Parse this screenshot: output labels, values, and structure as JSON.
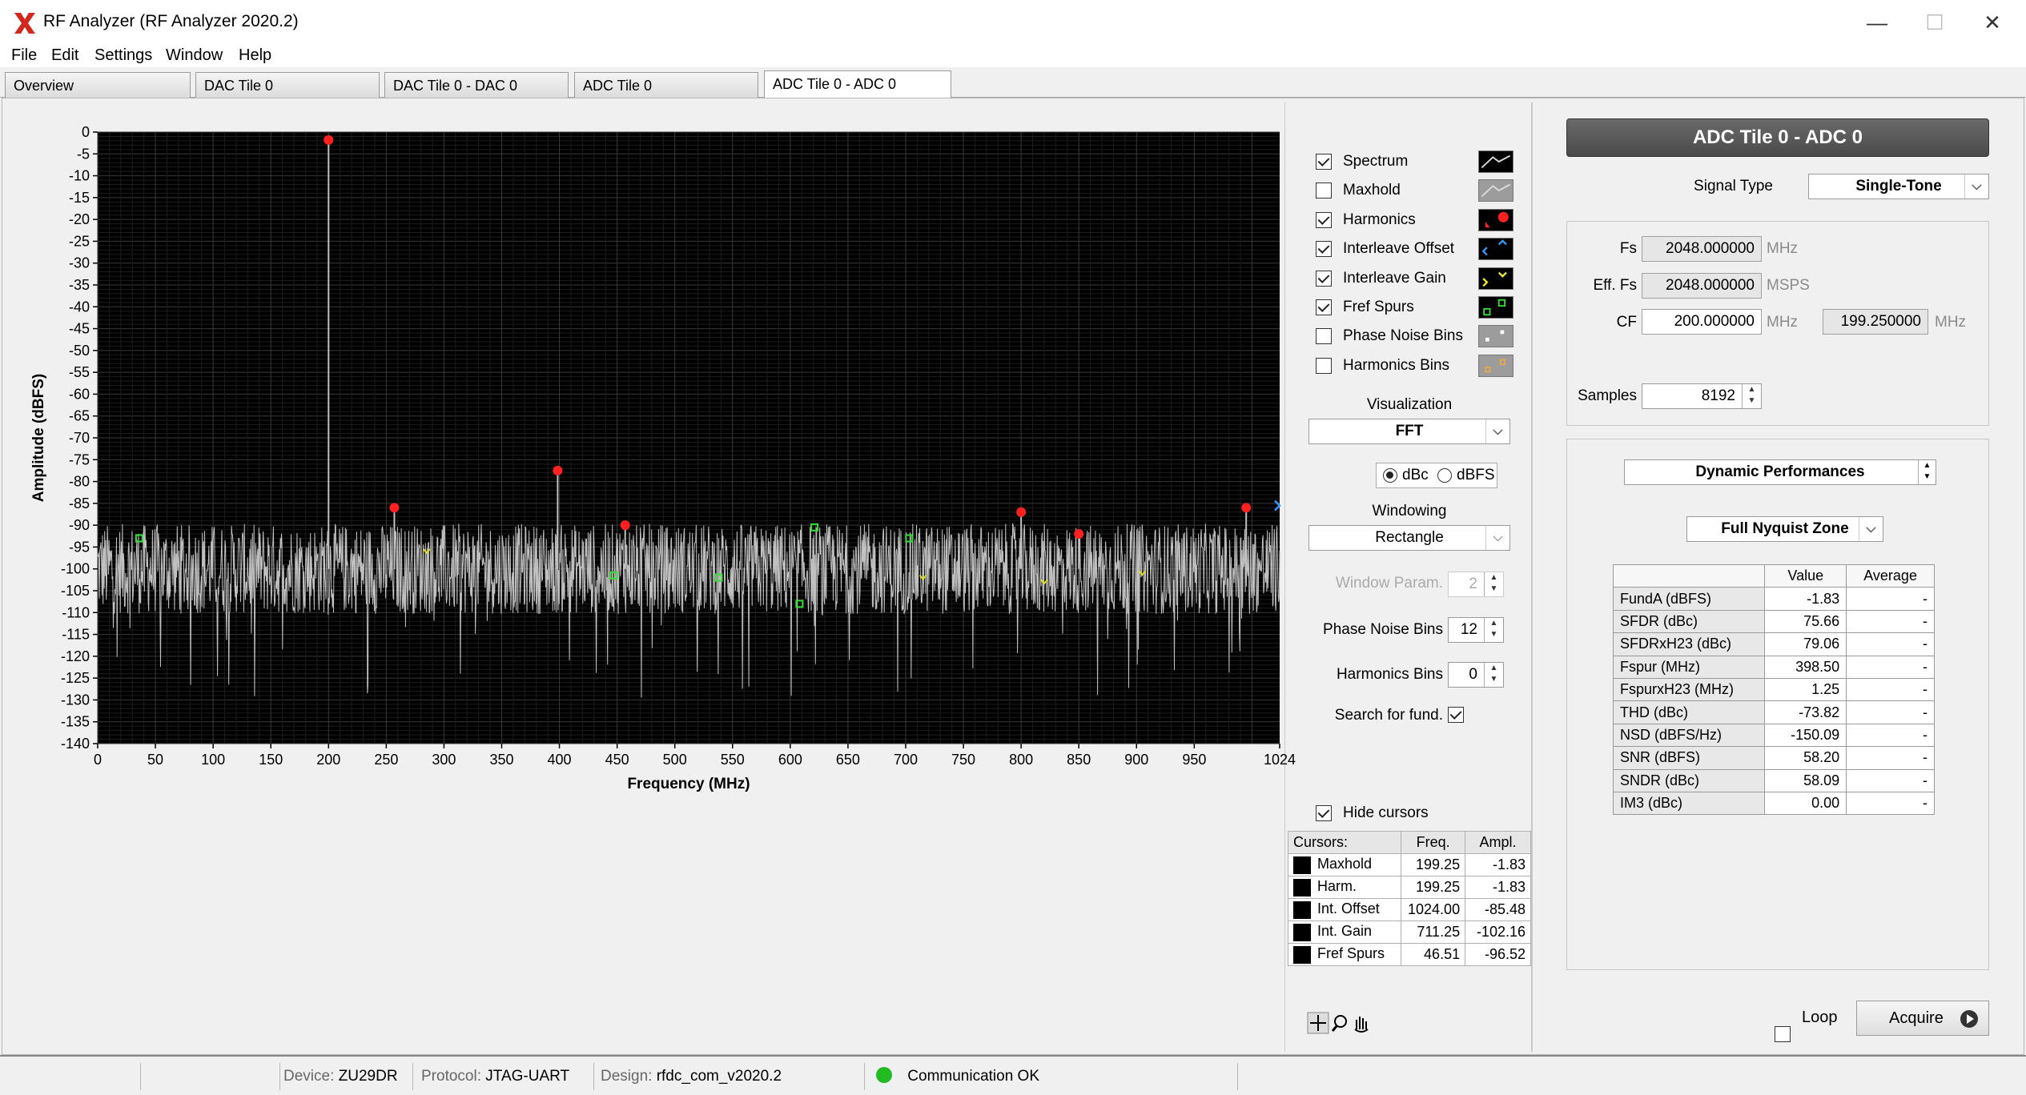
{
  "window": {
    "title": "RF Analyzer (RF Analyzer 2020.2)",
    "minimize_glyph": "—",
    "maximize_glyph": "☐",
    "close_glyph": "✕"
  },
  "menu": [
    "File",
    "Edit",
    "Settings",
    "Window",
    "Help"
  ],
  "tabs": [
    {
      "label": "Overview"
    },
    {
      "label": "DAC Tile 0"
    },
    {
      "label": "DAC Tile 0 - DAC 0"
    },
    {
      "label": "ADC Tile 0"
    },
    {
      "label": "ADC Tile 0 - ADC 0"
    }
  ],
  "active_tab": "ADC Tile 0 - ADC 0",
  "chart_data": {
    "type": "line",
    "xlabel": "Frequency (MHz)",
    "ylabel": "Amplitude (dBFS)",
    "xlim": [
      0,
      1024
    ],
    "ylim": [
      -140,
      0
    ],
    "x_ticks": [
      0,
      50,
      100,
      150,
      200,
      250,
      300,
      350,
      400,
      450,
      500,
      550,
      600,
      650,
      700,
      750,
      800,
      850,
      900,
      950,
      1024
    ],
    "y_ticks": [
      0,
      -5,
      -10,
      -15,
      -20,
      -25,
      -30,
      -35,
      -40,
      -45,
      -50,
      -55,
      -60,
      -65,
      -70,
      -75,
      -80,
      -85,
      -90,
      -95,
      -100,
      -105,
      -110,
      -115,
      -120,
      -125,
      -130,
      -135,
      -140
    ],
    "grid": true,
    "background": "#000000",
    "spectrum_color": "#c0c0c0",
    "noise_floor_db": -100,
    "noise_band_db": [
      -111,
      -88
    ],
    "series": [
      {
        "name": "Harmonics",
        "color": "#ff2020",
        "points": [
          {
            "x": 200,
            "y": -1.8
          },
          {
            "x": 257,
            "y": -86
          },
          {
            "x": 398.5,
            "y": -77.5
          },
          {
            "x": 457,
            "y": -90
          },
          {
            "x": 800,
            "y": -87
          },
          {
            "x": 850,
            "y": -92
          },
          {
            "x": 995,
            "y": -86
          }
        ]
      },
      {
        "name": "Fref Spurs",
        "color": "#33dd33",
        "points": [
          {
            "x": 36,
            "y": -93
          },
          {
            "x": 621,
            "y": -90.5
          },
          {
            "x": 703,
            "y": -93
          },
          {
            "x": 608,
            "y": -108
          },
          {
            "x": 447,
            "y": -101.5
          },
          {
            "x": 538,
            "y": -102
          }
        ]
      },
      {
        "name": "Interleave",
        "color": "#dddd22",
        "points": [
          {
            "x": 285,
            "y": -96
          },
          {
            "x": 715,
            "y": -102
          },
          {
            "x": 820,
            "y": -103
          },
          {
            "x": 905,
            "y": -101
          }
        ]
      }
    ]
  },
  "display_options": {
    "checkboxes": [
      {
        "label": "Spectrum",
        "checked": true
      },
      {
        "label": "Maxhold",
        "checked": false
      },
      {
        "label": "Harmonics",
        "checked": true
      },
      {
        "label": "Interleave Offset",
        "checked": true
      },
      {
        "label": "Interleave Gain",
        "checked": true
      },
      {
        "label": "Fref Spurs",
        "checked": true
      },
      {
        "label": "Phase Noise Bins",
        "checked": false
      },
      {
        "label": "Harmonics Bins",
        "checked": false
      }
    ],
    "visualization_label": "Visualization",
    "visualization_value": "FFT",
    "units": [
      {
        "label": "dBc",
        "selected": true
      },
      {
        "label": "dBFS",
        "selected": false
      }
    ],
    "windowing_label": "Windowing",
    "windowing_value": "Rectangle",
    "window_param_label": "Window Param.",
    "window_param_value": "2",
    "phase_noise_bins_label": "Phase Noise Bins",
    "phase_noise_bins_value": "12",
    "harmonics_bins_label": "Harmonics Bins",
    "harmonics_bins_value": "0",
    "search_fund_label": "Search for fund.",
    "search_fund_checked": true,
    "hide_cursors_label": "Hide cursors",
    "hide_cursors_checked": true
  },
  "cursors": {
    "headers": [
      "Cursors:",
      "Freq.",
      "Ampl."
    ],
    "rows": [
      {
        "name": "Maxhold",
        "freq": "199.25",
        "ampl": "-1.83"
      },
      {
        "name": "Harm.",
        "freq": "199.25",
        "ampl": "-1.83"
      },
      {
        "name": "Int. Offset",
        "freq": "1024.00",
        "ampl": "-85.48"
      },
      {
        "name": "Int. Gain",
        "freq": "711.25",
        "ampl": "-102.16"
      },
      {
        "name": "Fref Spurs",
        "freq": "46.51",
        "ampl": "-96.52"
      }
    ]
  },
  "adc_panel": {
    "title": "ADC Tile 0 - ADC 0",
    "signal_type_label": "Signal Type",
    "signal_type_value": "Single-Tone",
    "fs_label": "Fs",
    "fs_value": "2048.000000",
    "fs_unit": "MHz",
    "eff_fs_label": "Eff. Fs",
    "eff_fs_value": "2048.000000",
    "eff_fs_unit": "MSPS",
    "cf_label": "CF",
    "cf_value": "200.000000",
    "cf_unit": "MHz",
    "cf2_value": "199.250000",
    "cf2_unit": "MHz",
    "samples_label": "Samples",
    "samples_value": "8192",
    "perf_selector": "Dynamic Performances",
    "zone_selector": "Full Nyquist Zone",
    "table_headers": [
      "",
      "Value",
      "Average"
    ],
    "metrics": [
      {
        "name": "FundA (dBFS)",
        "value": "-1.83",
        "avg": "-"
      },
      {
        "name": "SFDR (dBc)",
        "value": "75.66",
        "avg": "-"
      },
      {
        "name": "SFDRxH23 (dBc)",
        "value": "79.06",
        "avg": "-"
      },
      {
        "name": "Fspur (MHz)",
        "value": "398.50",
        "avg": "-"
      },
      {
        "name": "FspurxH23 (MHz)",
        "value": "1.25",
        "avg": "-"
      },
      {
        "name": "THD (dBc)",
        "value": "-73.82",
        "avg": "-"
      },
      {
        "name": "NSD (dBFS/Hz)",
        "value": "-150.09",
        "avg": "-"
      },
      {
        "name": "SNR (dBFS)",
        "value": "58.20",
        "avg": "-"
      },
      {
        "name": "SNDR (dBc)",
        "value": "58.09",
        "avg": "-"
      },
      {
        "name": "IM3 (dBc)",
        "value": "0.00",
        "avg": "-"
      }
    ],
    "loop_label": "Loop",
    "loop_checked": false,
    "acquire_label": "Acquire"
  },
  "status": {
    "device_key": "Device:",
    "device_value": "ZU29DR",
    "protocol_key": "Protocol:",
    "protocol_value": "JTAG-UART",
    "design_key": "Design:",
    "design_value": "rfdc_com_v2020.2",
    "comm_status": "Communication OK",
    "comm_color": "#22bb22"
  }
}
